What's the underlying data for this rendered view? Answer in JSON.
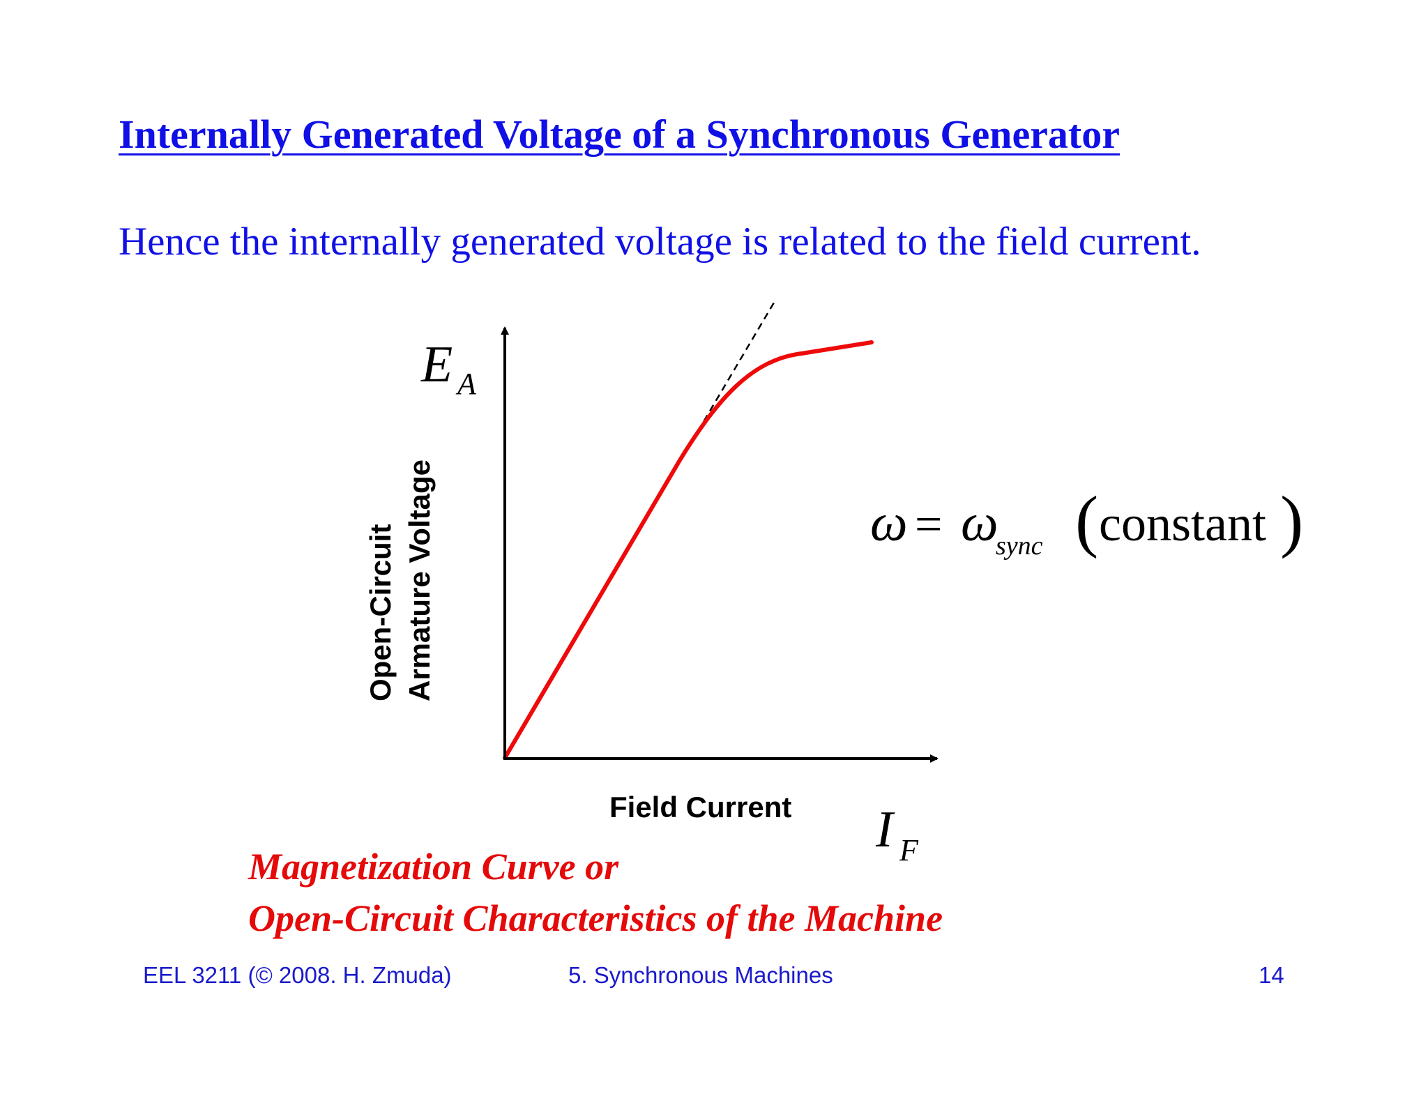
{
  "title": "Internally Generated Voltage of a Synchronous Generator",
  "subtitle": "Hence the internally generated voltage is related to the field current.",
  "diagram": {
    "y_symbol": {
      "main": "E",
      "sub": "A"
    },
    "x_symbol": {
      "main": "I",
      "sub": "F"
    },
    "y_label_line1": "Open-Circuit",
    "y_label_line2": "Armature Voltage",
    "x_label": "Field Current",
    "equation": {
      "omega": "ω",
      "equals": "=",
      "omega_sync": "ω",
      "sub": "sync",
      "paren_open": "(",
      "word": "constant",
      "paren_close": ")"
    },
    "curve_color": "#ee0a0a",
    "axis_color": "#000000"
  },
  "caption_line1": "Magnetization Curve or",
  "caption_line2": "Open-Circuit Characteristics of the Machine",
  "footer": {
    "left": "EEL 3211 (© 2008. H. Zmuda)",
    "middle": "5. Synchronous Machines",
    "page": "14"
  }
}
